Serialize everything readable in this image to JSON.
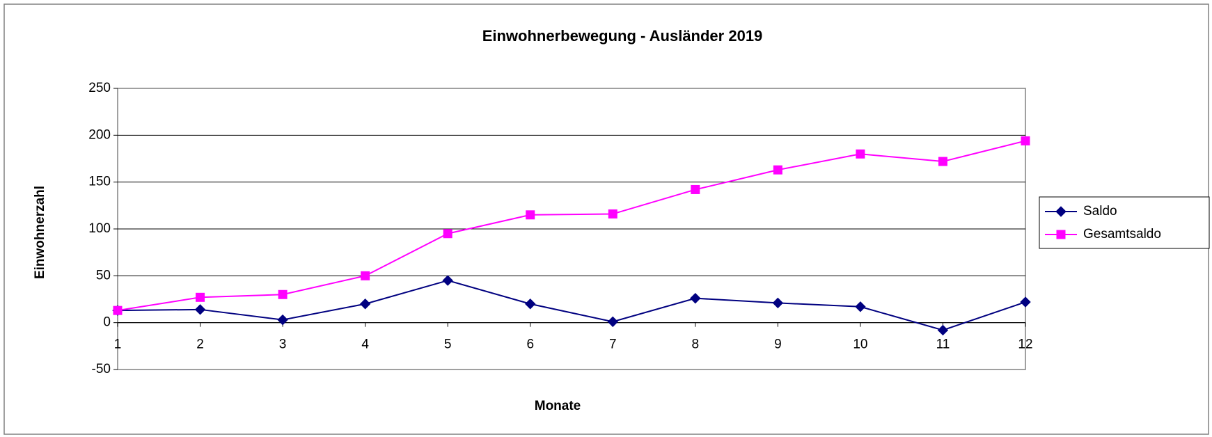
{
  "chart_data": {
    "type": "line",
    "title": "Einwohnerbewegung - Ausländer 2019",
    "x_label": "Monate",
    "y_label": "Einwohnerzahl",
    "x": [
      1,
      2,
      3,
      4,
      5,
      6,
      7,
      8,
      9,
      10,
      11,
      12
    ],
    "xlim": [
      1,
      12
    ],
    "series": [
      {
        "name": "Saldo",
        "color": "#000080",
        "marker": "diamond",
        "values": [
          13,
          14,
          3,
          20,
          45,
          20,
          1,
          26,
          21,
          17,
          -8,
          22
        ]
      },
      {
        "name": "Gesamtsaldo",
        "color": "#ff00ff",
        "marker": "square",
        "values": [
          13,
          27,
          30,
          50,
          95,
          115,
          116,
          142,
          163,
          180,
          172,
          194
        ]
      }
    ],
    "ylim": [
      -50,
      250
    ],
    "yticks": [
      -50,
      0,
      50,
      100,
      150,
      200,
      250
    ],
    "negative_tick_color": "#ff0000",
    "grid": true,
    "legend": "right"
  }
}
